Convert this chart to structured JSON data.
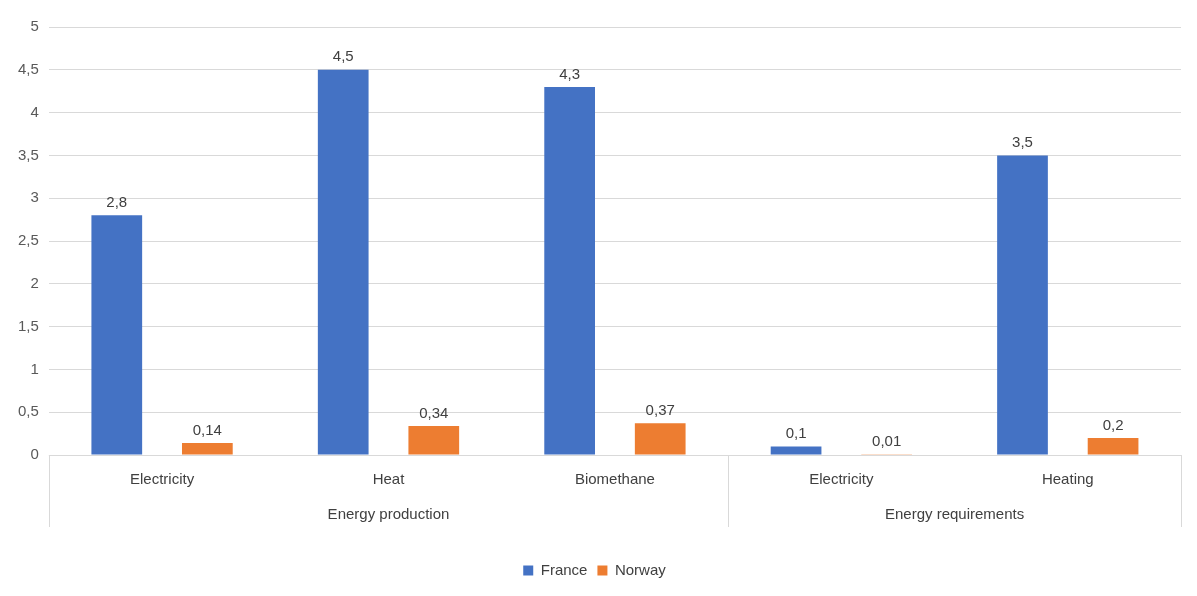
{
  "chart_data": {
    "type": "bar",
    "categories": [
      "Electricity",
      "Heat",
      "Biomethane",
      "Electricity",
      "Heating"
    ],
    "annotations": [
      "Energy production",
      "Energy requirements"
    ],
    "series": [
      {
        "name": "France",
        "color": "#4472c4",
        "values": [
          2.8,
          4.5,
          4.3,
          0.1,
          3.5
        ],
        "value_labels": [
          "2,8",
          "4,5",
          "4,3",
          "0,1",
          "3,5"
        ]
      },
      {
        "name": "Norway",
        "color": "#ed7d31",
        "values": [
          0.14,
          0.34,
          0.37,
          0.01,
          0.2
        ],
        "value_labels": [
          "0,14",
          "0,34",
          "0,37",
          "0,01",
          "0,2"
        ]
      }
    ],
    "ylim": [
      0,
      5
    ],
    "yticks": [
      0,
      {
        "value": 0.5,
        "label": "0,5"
      },
      1,
      {
        "value": 1.5,
        "label": "1,5"
      },
      2,
      {
        "value": 2.5,
        "label": "2,5"
      },
      3,
      {
        "value": 3.5,
        "label": "3,5"
      },
      4,
      {
        "value": 4.5,
        "label": "4,5"
      },
      5
    ],
    "grid": "y",
    "legend": "bottom"
  }
}
